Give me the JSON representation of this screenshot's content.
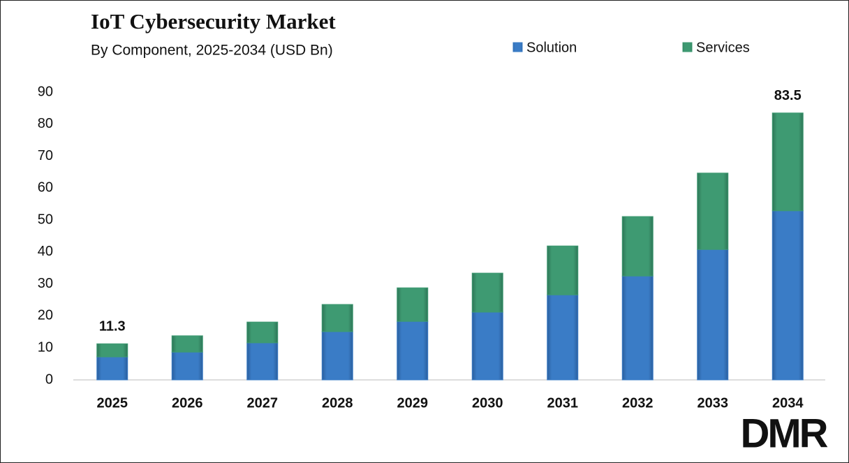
{
  "chart_data": {
    "type": "stacked_bar",
    "title": "IoT Cybersecurity Market",
    "subtitle": "By Component, 2025-2034 (USD Bn)",
    "categories": [
      "2025",
      "2026",
      "2027",
      "2028",
      "2029",
      "2030",
      "2031",
      "2032",
      "2033",
      "2034"
    ],
    "series": [
      {
        "name": "Solution",
        "color": "#3a7cc6",
        "values": [
          7.2,
          8.7,
          11.6,
          15.1,
          18.3,
          21.2,
          26.6,
          32.5,
          40.8,
          52.9
        ]
      },
      {
        "name": "Services",
        "color": "#3e9a72",
        "values": [
          4.1,
          5.1,
          6.5,
          8.5,
          10.5,
          12.2,
          15.3,
          18.6,
          23.9,
          30.6
        ]
      }
    ],
    "total_labels": [
      11.3,
      null,
      null,
      null,
      null,
      null,
      null,
      null,
      null,
      83.5
    ],
    "ylim": [
      0,
      90
    ],
    "yticks": [
      0,
      10,
      20,
      30,
      40,
      50,
      60,
      70,
      80,
      90
    ],
    "grid": false,
    "logo": "DMR"
  }
}
